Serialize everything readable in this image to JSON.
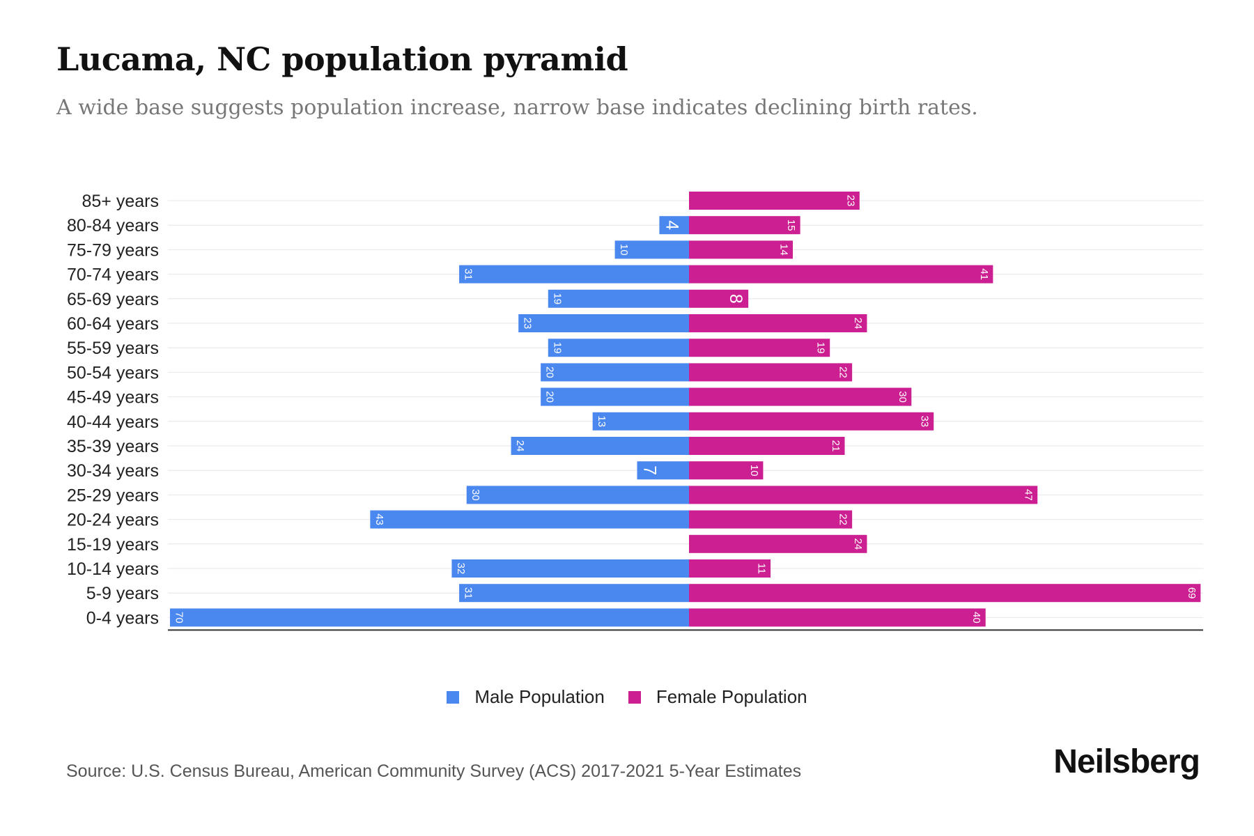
{
  "title": "Lucama, NC population pyramid",
  "subtitle": "A wide base suggests population increase, narrow base indicates declining birth rates.",
  "legend": {
    "male": "Male Population",
    "female": "Female Population"
  },
  "source": "Source: U.S. Census Bureau, American Community Survey (ACS) 2017-2021 5-Year Estimates",
  "brand": "Neilsberg",
  "colors": {
    "male": "#4a88f0",
    "female": "#cc1f92",
    "grid": "#e6e6e6",
    "axis": "#333333"
  },
  "chart_data": {
    "type": "bar",
    "orientation": "horizontal-pyramid",
    "title": "Lucama, NC population pyramid",
    "categories": [
      "85+ years",
      "80-84 years",
      "75-79 years",
      "70-74 years",
      "65-69 years",
      "60-64 years",
      "55-59 years",
      "50-54 years",
      "45-49 years",
      "40-44 years",
      "35-39 years",
      "30-34 years",
      "25-29 years",
      "20-24 years",
      "15-19 years",
      "10-14 years",
      "5-9 years",
      "0-4 years"
    ],
    "series": [
      {
        "name": "Male Population",
        "values": [
          0,
          4,
          10,
          31,
          19,
          23,
          19,
          20,
          20,
          13,
          24,
          7,
          30,
          43,
          0,
          32,
          31,
          70
        ]
      },
      {
        "name": "Female Population",
        "values": [
          23,
          15,
          14,
          41,
          8,
          24,
          19,
          22,
          30,
          33,
          21,
          10,
          47,
          22,
          24,
          11,
          69,
          40
        ]
      }
    ],
    "xlim": [
      -70,
      70
    ],
    "legend_position": "bottom-center"
  }
}
